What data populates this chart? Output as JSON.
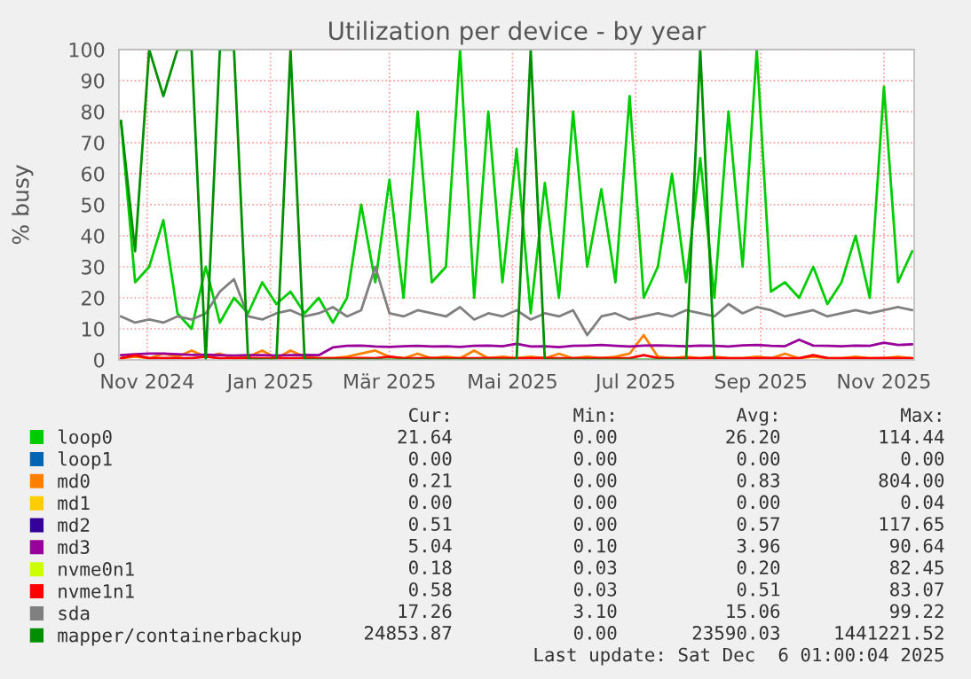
{
  "chart_data": {
    "type": "line",
    "title": "Utilization per device - by year",
    "ylabel": "% busy",
    "x": [
      "2024-10-19",
      "2024-10-26",
      "2024-11-02",
      "2024-11-09",
      "2024-11-16",
      "2024-11-23",
      "2024-11-30",
      "2024-12-07",
      "2024-12-14",
      "2024-12-21",
      "2024-12-28",
      "2025-01-04",
      "2025-01-11",
      "2025-01-18",
      "2025-01-25",
      "2025-02-01",
      "2025-02-08",
      "2025-02-15",
      "2025-02-22",
      "2025-03-01",
      "2025-03-08",
      "2025-03-15",
      "2025-03-22",
      "2025-03-29",
      "2025-04-05",
      "2025-04-12",
      "2025-04-19",
      "2025-04-26",
      "2025-05-03",
      "2025-05-10",
      "2025-05-17",
      "2025-05-24",
      "2025-05-31",
      "2025-06-07",
      "2025-06-14",
      "2025-06-21",
      "2025-06-28",
      "2025-07-05",
      "2025-07-12",
      "2025-07-19",
      "2025-07-26",
      "2025-08-02",
      "2025-08-09",
      "2025-08-16",
      "2025-08-23",
      "2025-08-30",
      "2025-09-06",
      "2025-09-13",
      "2025-09-20",
      "2025-09-27",
      "2025-10-04",
      "2025-10-11",
      "2025-10-18",
      "2025-10-25",
      "2025-11-01",
      "2025-11-08",
      "2025-11-15"
    ],
    "series": [
      {
        "name": "loop0",
        "color": "#00cc00",
        "values": [
          77,
          25,
          30,
          45,
          15,
          10,
          30,
          12,
          20,
          15,
          25,
          18,
          22,
          15,
          20,
          12,
          20,
          50,
          25,
          58,
          20,
          80,
          25,
          30,
          100,
          20,
          80,
          25,
          68,
          15,
          57,
          20,
          80,
          30,
          55,
          25,
          85,
          20,
          30,
          60,
          25,
          65,
          20,
          80,
          30,
          100,
          22,
          25,
          20,
          30,
          18,
          25,
          40,
          20,
          88,
          25,
          35
        ]
      },
      {
        "name": "loop1",
        "color": "#0066b3",
        "values": [
          null,
          null,
          null,
          null,
          null,
          null,
          null,
          null,
          null,
          null,
          null,
          null,
          null,
          null,
          null,
          null,
          null,
          null,
          null,
          null,
          null,
          null,
          null,
          null,
          null,
          null,
          null,
          null,
          null,
          null,
          null,
          null,
          null,
          null,
          null,
          null,
          null,
          null,
          null,
          null,
          null,
          null,
          null,
          null,
          null,
          null,
          null,
          null,
          null,
          null,
          null,
          null,
          null,
          null,
          null,
          null,
          null
        ]
      },
      {
        "name": "md0",
        "color": "#ff8000",
        "values": [
          0.5,
          1,
          0.5,
          2,
          1,
          3,
          1,
          2,
          0.5,
          1,
          3,
          0.5,
          3,
          1,
          0.5,
          0.5,
          1,
          2,
          3,
          1,
          0.5,
          2,
          0.5,
          1,
          0.5,
          3,
          0.5,
          1,
          0.5,
          1,
          0.5,
          2,
          0.5,
          1,
          0.5,
          1,
          2,
          8,
          1,
          0.5,
          1,
          0.5,
          1,
          0.5,
          0.5,
          1,
          0.5,
          2,
          0.5,
          1,
          0.5,
          0.5,
          1,
          0.5,
          0.5,
          1,
          0.5
        ]
      },
      {
        "name": "md1",
        "color": "#ffcc00",
        "values": [
          null,
          null,
          null,
          null,
          null,
          null,
          null,
          null,
          null,
          null,
          null,
          null,
          null,
          null,
          null,
          null,
          null,
          null,
          null,
          null,
          null,
          null,
          null,
          null,
          null,
          null,
          null,
          null,
          null,
          null,
          null,
          null,
          null,
          null,
          null,
          null,
          null,
          null,
          null,
          null,
          null,
          null,
          null,
          null,
          null,
          null,
          null,
          null,
          null,
          null,
          null,
          null,
          null,
          null,
          null,
          null,
          null
        ]
      },
      {
        "name": "md2",
        "color": "#330099",
        "values": [
          null,
          null,
          null,
          null,
          null,
          null,
          null,
          null,
          null,
          null,
          null,
          null,
          null,
          null,
          null,
          null,
          null,
          null,
          null,
          null,
          null,
          null,
          null,
          null,
          null,
          null,
          null,
          null,
          null,
          null,
          null,
          null,
          null,
          null,
          null,
          null,
          null,
          null,
          null,
          null,
          null,
          null,
          null,
          null,
          null,
          null,
          null,
          null,
          null,
          null,
          null,
          null,
          null,
          null,
          null,
          null,
          null
        ]
      },
      {
        "name": "md3",
        "color": "#990099",
        "values": [
          1.5,
          1.8,
          2,
          2,
          1.8,
          1.6,
          1.7,
          1.5,
          1.4,
          1.5,
          1.5,
          1.4,
          1.5,
          1.6,
          1.5,
          4,
          4.5,
          4.6,
          4.3,
          4.2,
          4.4,
          4.5,
          4.3,
          4.4,
          4.2,
          4.5,
          4.6,
          4.4,
          5.2,
          4.3,
          4.4,
          4.1,
          4.5,
          4.6,
          4.8,
          4.5,
          4.3,
          4.6,
          4.7,
          4.5,
          4.4,
          4.6,
          4.5,
          4.3,
          4.7,
          4.8,
          4.5,
          4.4,
          6.5,
          4.6,
          4.5,
          4.4,
          4.6,
          4.5,
          5.5,
          4.8,
          5.0
        ]
      },
      {
        "name": "nvme0n1",
        "color": "#ccff00",
        "values": [
          null,
          null,
          null,
          null,
          null,
          null,
          null,
          null,
          null,
          null,
          null,
          null,
          null,
          null,
          null,
          null,
          null,
          null,
          null,
          null,
          null,
          null,
          null,
          null,
          null,
          null,
          null,
          null,
          null,
          null,
          null,
          null,
          null,
          null,
          null,
          null,
          null,
          null,
          null,
          null,
          null,
          null,
          null,
          null,
          null,
          null,
          null,
          null,
          null,
          null,
          null,
          null,
          null,
          null,
          null,
          null,
          null
        ]
      },
      {
        "name": "nvme1n1",
        "color": "#ff0000",
        "values": [
          0.5,
          1.5,
          0.5,
          0.6,
          0.5,
          0.5,
          1,
          0.5,
          0.5,
          0.6,
          0.5,
          0.5,
          0.5,
          0.6,
          0.5,
          0.5,
          0.5,
          0.6,
          0.5,
          1,
          0.5,
          0.5,
          0.6,
          0.5,
          0.5,
          0.5,
          0.6,
          0.5,
          0.5,
          0.5,
          0.6,
          0.5,
          0.5,
          0.5,
          0.6,
          0.5,
          0.5,
          1.5,
          0.6,
          0.5,
          0.5,
          0.5,
          0.6,
          0.5,
          0.5,
          0.5,
          0.6,
          0.5,
          0.5,
          1.5,
          0.6,
          0.5,
          0.5,
          0.5,
          0.6,
          0.5,
          0.5
        ]
      },
      {
        "name": "sda",
        "color": "#808080",
        "values": [
          14,
          12,
          13,
          12,
          14,
          13,
          15,
          22,
          26,
          14,
          13,
          15,
          16,
          14,
          15,
          17,
          14,
          16,
          30,
          15,
          14,
          16,
          15,
          14,
          17,
          13,
          15,
          14,
          16,
          13,
          15,
          14,
          16,
          8,
          14,
          15,
          13,
          14,
          15,
          14,
          16,
          15,
          14,
          18,
          15,
          17,
          16,
          14,
          15,
          16,
          14,
          15,
          16,
          15,
          16,
          17,
          16
        ]
      },
      {
        "name": "mapper/containerbackup",
        "color": "#008f00",
        "values": [
          77,
          35,
          100,
          85,
          100,
          100,
          0,
          100,
          100,
          0,
          null,
          0,
          100,
          0,
          null,
          null,
          null,
          null,
          null,
          null,
          null,
          null,
          null,
          null,
          null,
          null,
          null,
          null,
          0,
          100,
          0,
          null,
          null,
          null,
          null,
          null,
          null,
          null,
          null,
          null,
          0,
          100,
          0,
          null,
          null,
          null,
          null,
          null,
          null,
          null,
          null,
          null,
          null,
          null,
          null,
          null,
          null
        ]
      }
    ],
    "xlim": [
      "2024-10-18",
      "2025-11-16"
    ],
    "xticks": [
      {
        "value": "2024-11-01",
        "label": "Nov 2024"
      },
      {
        "value": "2025-01-01",
        "label": "Jan 2025"
      },
      {
        "value": "2025-03-01",
        "label": "Mär 2025"
      },
      {
        "value": "2025-05-01",
        "label": "Mai 2025"
      },
      {
        "value": "2025-07-01",
        "label": "Jul 2025"
      },
      {
        "value": "2025-09-01",
        "label": "Sep 2025"
      },
      {
        "value": "2025-11-01",
        "label": "Nov 2025"
      }
    ],
    "ylim": [
      0,
      100
    ],
    "yticks": [
      0,
      10,
      20,
      30,
      40,
      50,
      60,
      70,
      80,
      90,
      100
    ],
    "grid": true,
    "legend": "bottom",
    "annotations": [
      "Cur:",
      "Min:",
      "Avg:",
      "Max:",
      "21.64",
      "0.00",
      "26.20",
      "114.44",
      "0.00",
      "0.00",
      "0.00",
      "0.00",
      "0.21",
      "0.00",
      "0.83",
      "804.00",
      "0.00",
      "0.00",
      "0.00",
      "0.04",
      "0.51",
      "0.00",
      "0.57",
      "117.65",
      "5.04",
      "0.10",
      "3.96",
      "90.64",
      "0.18",
      "0.03",
      "0.20",
      "82.45",
      "0.58",
      "0.03",
      "0.51",
      "83.07",
      "17.26",
      "3.10",
      "15.06",
      "99.22",
      "24853.87",
      "0.00",
      "23590.03",
      "1441221.52",
      "Last update: Sat Dec  6 01:00:04 2025"
    ]
  }
}
